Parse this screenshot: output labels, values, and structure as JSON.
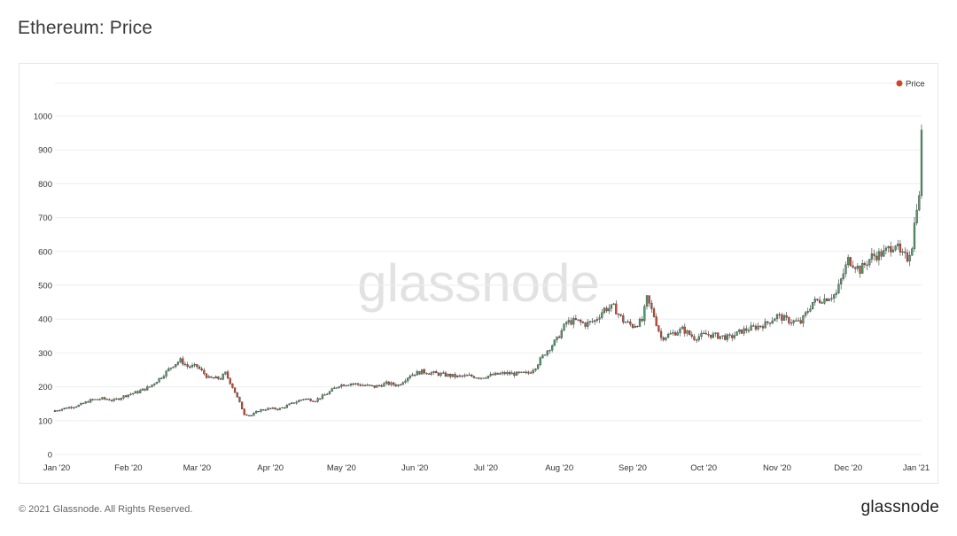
{
  "page": {
    "title": "Ethereum: Price",
    "footer_copyright": "© 2021 Glassnode. All Rights Reserved.",
    "footer_logo": "glassnode",
    "watermark": "glassnode"
  },
  "colors": {
    "up": "#4f9b6c",
    "down": "#c84b35",
    "legend_dot": "#d0442c",
    "grid": "#eeeeee",
    "watermark": "#e2e2e2"
  },
  "chart_data": {
    "type": "candlestick",
    "title": "Ethereum: Price",
    "legend": [
      {
        "name": "Price",
        "position": "top-right"
      }
    ],
    "y_ticks": [
      0,
      100,
      200,
      300,
      400,
      500,
      600,
      700,
      800,
      900,
      1000
    ],
    "ylim": [
      0,
      1100
    ],
    "x_ticks": [
      "Jan '20",
      "Feb '20",
      "Mar '20",
      "Apr '20",
      "May '20",
      "Jun '20",
      "Jul '20",
      "Aug '20",
      "Sep '20",
      "Oct '20",
      "Nov '20",
      "Dec '20",
      "Jan '21"
    ],
    "grid": true,
    "x_range_days": 366,
    "close_anchors": [
      [
        0,
        130
      ],
      [
        5,
        138
      ],
      [
        10,
        145
      ],
      [
        15,
        160
      ],
      [
        20,
        165
      ],
      [
        25,
        160
      ],
      [
        30,
        175
      ],
      [
        35,
        185
      ],
      [
        40,
        200
      ],
      [
        45,
        230
      ],
      [
        50,
        265
      ],
      [
        53,
        278
      ],
      [
        56,
        260
      ],
      [
        60,
        260
      ],
      [
        65,
        225
      ],
      [
        70,
        225
      ],
      [
        72,
        240
      ],
      [
        75,
        200
      ],
      [
        80,
        120
      ],
      [
        83,
        115
      ],
      [
        86,
        130
      ],
      [
        90,
        135
      ],
      [
        95,
        135
      ],
      [
        100,
        150
      ],
      [
        105,
        165
      ],
      [
        110,
        160
      ],
      [
        115,
        180
      ],
      [
        120,
        205
      ],
      [
        125,
        210
      ],
      [
        130,
        205
      ],
      [
        135,
        200
      ],
      [
        140,
        210
      ],
      [
        145,
        205
      ],
      [
        150,
        235
      ],
      [
        155,
        245
      ],
      [
        160,
        240
      ],
      [
        165,
        235
      ],
      [
        170,
        230
      ],
      [
        175,
        232
      ],
      [
        180,
        228
      ],
      [
        185,
        235
      ],
      [
        190,
        240
      ],
      [
        195,
        238
      ],
      [
        200,
        240
      ],
      [
        203,
        260
      ],
      [
        207,
        300
      ],
      [
        212,
        340
      ],
      [
        216,
        390
      ],
      [
        220,
        395
      ],
      [
        224,
        385
      ],
      [
        228,
        395
      ],
      [
        232,
        430
      ],
      [
        236,
        435
      ],
      [
        240,
        395
      ],
      [
        244,
        380
      ],
      [
        248,
        395
      ],
      [
        250,
        460
      ],
      [
        253,
        410
      ],
      [
        256,
        345
      ],
      [
        260,
        355
      ],
      [
        265,
        370
      ],
      [
        270,
        345
      ],
      [
        275,
        355
      ],
      [
        280,
        350
      ],
      [
        285,
        345
      ],
      [
        290,
        365
      ],
      [
        295,
        375
      ],
      [
        300,
        385
      ],
      [
        305,
        410
      ],
      [
        310,
        395
      ],
      [
        315,
        390
      ],
      [
        320,
        450
      ],
      [
        325,
        460
      ],
      [
        330,
        475
      ],
      [
        335,
        575
      ],
      [
        338,
        560
      ],
      [
        340,
        545
      ],
      [
        345,
        585
      ],
      [
        350,
        595
      ],
      [
        355,
        625
      ],
      [
        357,
        590
      ],
      [
        360,
        580
      ],
      [
        362,
        620
      ],
      [
        364,
        740
      ],
      [
        365,
        755
      ],
      [
        366,
        970
      ]
    ]
  }
}
